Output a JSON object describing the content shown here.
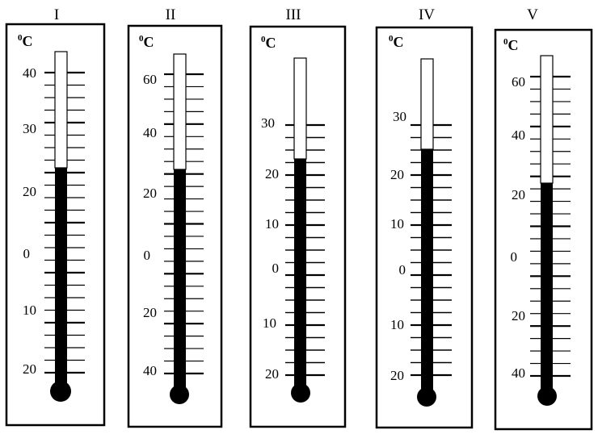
{
  "thermometers": [
    {
      "roman": "I",
      "unit_sup": "0",
      "unit": "C",
      "labels": [
        "40",
        "30",
        "20",
        "0",
        "10",
        "20"
      ],
      "reading": "23"
    },
    {
      "roman": "II",
      "unit_sup": "0",
      "unit": "C",
      "labels": [
        "60",
        "40",
        "20",
        "0",
        "20",
        "40"
      ],
      "reading": "28"
    },
    {
      "roman": "III",
      "unit_sup": "0",
      "unit": "C",
      "labels": [
        "30",
        "20",
        "10",
        "0",
        "10",
        "20"
      ],
      "reading": "23"
    },
    {
      "roman": "IV",
      "unit_sup": "0",
      "unit": "C",
      "labels": [
        "30",
        "20",
        "10",
        "0",
        "10",
        "20"
      ],
      "reading": "25"
    },
    {
      "roman": "V",
      "unit_sup": "0",
      "unit": "C",
      "labels": [
        "60",
        "40",
        "20",
        "0",
        "20",
        "40"
      ],
      "reading": "24"
    }
  ]
}
